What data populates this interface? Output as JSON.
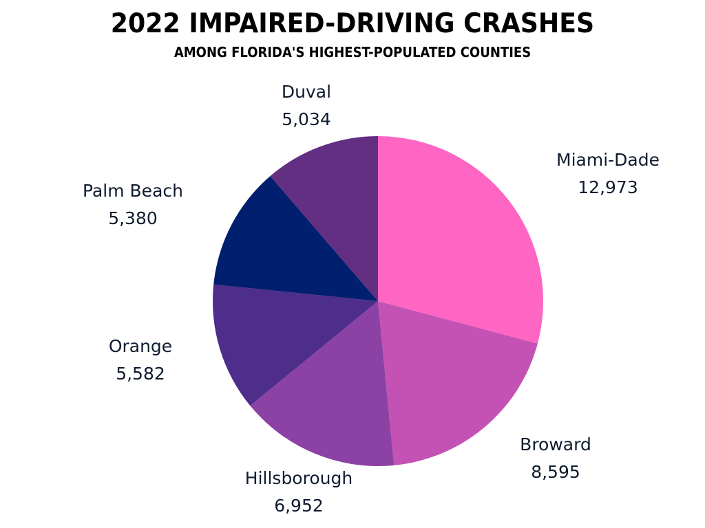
{
  "chart_data": {
    "type": "pie",
    "title": "2022 IMPAIRED-DRIVING CRASHES",
    "subtitle": "AMONG FLORIDA'S HIGHEST-POPULATED COUNTIES",
    "start_angle_deg": 0,
    "direction": "clockwise",
    "slices": [
      {
        "label": "Miami-Dade",
        "value": 12973,
        "value_text": "12,973",
        "color": "#ff66c4"
      },
      {
        "label": "Broward",
        "value": 8595,
        "value_text": "8,595",
        "color": "#c452b5"
      },
      {
        "label": "Hillsborough",
        "value": 6952,
        "value_text": "6,952",
        "color": "#8b42a4"
      },
      {
        "label": "Orange",
        "value": 5582,
        "value_text": "5,582",
        "color": "#4f2d8a"
      },
      {
        "label": "Palm Beach",
        "value": 5380,
        "value_text": "5,380",
        "color": "#001f6e"
      },
      {
        "label": "Duval",
        "value": 5034,
        "value_text": "5,034",
        "color": "#622f82"
      }
    ]
  }
}
